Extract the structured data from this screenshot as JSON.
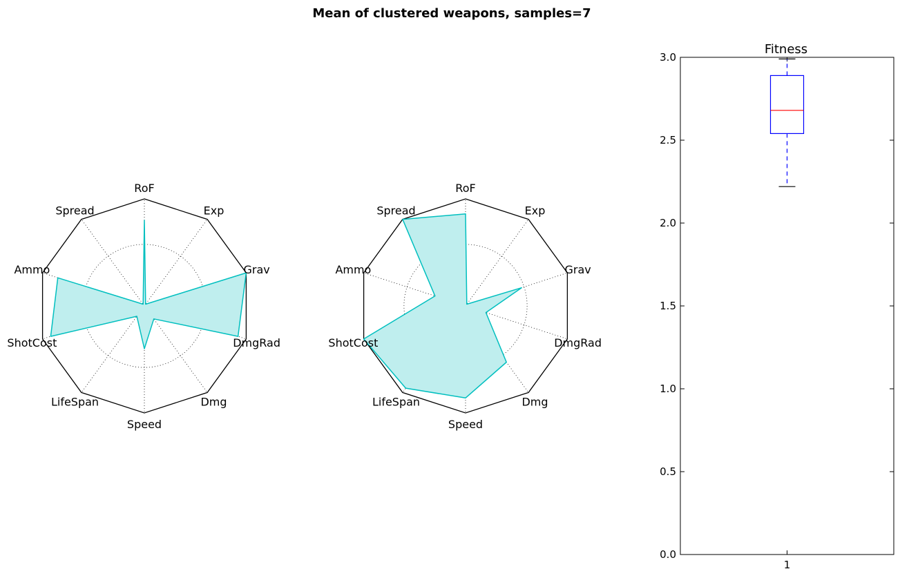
{
  "figure": {
    "title": "Mean of clustered weapons, samples=7"
  },
  "chart_data": [
    {
      "type": "radar",
      "axes": [
        "RoF",
        "Exp",
        "Grav",
        "DmgRad",
        "Dmg",
        "Speed",
        "LifeSpan",
        "ShotCost",
        "Ammo",
        "Spread"
      ],
      "values": [
        0.8,
        0.02,
        1.0,
        0.92,
        0.15,
        0.4,
        0.12,
        0.92,
        0.85,
        0.02
      ],
      "range": [
        0,
        1
      ],
      "grid": true,
      "fill_color": "#bfeeee",
      "line_color": "#00bfbf"
    },
    {
      "type": "radar",
      "axes": [
        "RoF",
        "Exp",
        "Grav",
        "DmgRad",
        "Dmg",
        "Speed",
        "LifeSpan",
        "ShotCost",
        "Ammo",
        "Spread"
      ],
      "values": [
        0.86,
        0.02,
        0.55,
        0.2,
        0.65,
        0.86,
        0.95,
        1.0,
        0.3,
        1.0
      ],
      "range": [
        0,
        1
      ],
      "grid": true,
      "fill_color": "#bfeeee",
      "line_color": "#00bfbf"
    },
    {
      "type": "box",
      "title": "Fitness",
      "categories": [
        "1"
      ],
      "stats": {
        "whislo": 2.22,
        "q1": 2.54,
        "med": 2.68,
        "q3": 2.89,
        "whishi": 2.99
      },
      "ylim": [
        0,
        3.0
      ],
      "yticks": [
        "0.0",
        "0.5",
        "1.0",
        "1.5",
        "2.0",
        "2.5",
        "3.0"
      ],
      "box_color": "#0000ff",
      "median_color": "#ff0000"
    }
  ]
}
